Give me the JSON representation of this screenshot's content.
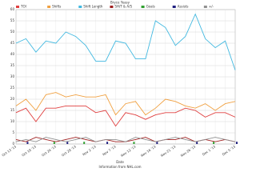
{
  "chart_data": {
    "type": "line",
    "title": "Bryce Yeasy",
    "xlabel": "Date",
    "source": "Information from NHL.com",
    "categories": [
      "Oct 13 '13",
      null,
      "Oct 19 '13",
      null,
      "Oct 24 '13",
      null,
      "Oct 29 '13",
      null,
      "Nov 2 '13",
      null,
      "Nov 7 '13",
      null,
      "Nov 12 '13",
      null,
      "Nov 16 '13",
      null,
      "Nov 21 '13",
      null,
      "Nov 26 '13",
      null,
      "Dec 1 '13",
      null,
      "Dec 5 '13"
    ],
    "ylim": [
      0,
      60
    ],
    "yticks": [
      0,
      5,
      10,
      15,
      20,
      25,
      30,
      35,
      40,
      45,
      50,
      55,
      60
    ],
    "grid": true,
    "series": [
      {
        "name": "TOI",
        "color": "#e04040",
        "kind": "line",
        "values": [
          14,
          16,
          10,
          16,
          16,
          17,
          17,
          17,
          14,
          15,
          8,
          14,
          13,
          11,
          13,
          14,
          14,
          16,
          15,
          12,
          14,
          14,
          12
        ]
      },
      {
        "name": "Shifts",
        "color": "#f0a040",
        "kind": "line",
        "values": [
          17,
          20,
          15,
          22,
          23,
          21,
          22,
          21,
          21,
          22,
          13,
          18,
          19,
          13,
          16,
          20,
          19,
          17,
          16,
          18,
          15,
          18,
          19
        ]
      },
      {
        "name": "Shift Length",
        "color": "#40b8e0",
        "kind": "line",
        "values": [
          45,
          47,
          41,
          46,
          45,
          50,
          48,
          44,
          37,
          37,
          46,
          45,
          38,
          38,
          55,
          52,
          44,
          48,
          58,
          47,
          43,
          46,
          33
        ]
      },
      {
        "name": "SH/T & A/S",
        "color": "#a02020",
        "kind": "line",
        "values": [
          2,
          1,
          3,
          2,
          1,
          2,
          3,
          2,
          1,
          2,
          1,
          1,
          2,
          3,
          1,
          2,
          2,
          3,
          1,
          2,
          1,
          2,
          1
        ]
      },
      {
        "name": "Goals",
        "color": "#30a030",
        "kind": "bar",
        "values": [
          0,
          0,
          0,
          0,
          1,
          0,
          0,
          1,
          0,
          0,
          0,
          0,
          1,
          0,
          0,
          0,
          0,
          0,
          0,
          0,
          1,
          0,
          0
        ]
      },
      {
        "name": "Assists",
        "color": "#202080",
        "kind": "bar",
        "values": [
          0,
          1,
          0,
          0,
          0,
          1,
          0,
          0,
          0,
          1,
          0,
          0,
          0,
          0,
          1,
          0,
          0,
          0,
          1,
          0,
          0,
          0,
          1
        ]
      },
      {
        "name": "+/-",
        "color": "#909090",
        "kind": "line",
        "values": [
          1,
          2,
          1,
          3,
          2,
          1,
          2,
          3,
          1,
          2,
          2,
          1,
          3,
          2,
          1,
          2,
          3,
          2,
          1,
          2,
          3,
          2,
          1
        ]
      }
    ]
  }
}
